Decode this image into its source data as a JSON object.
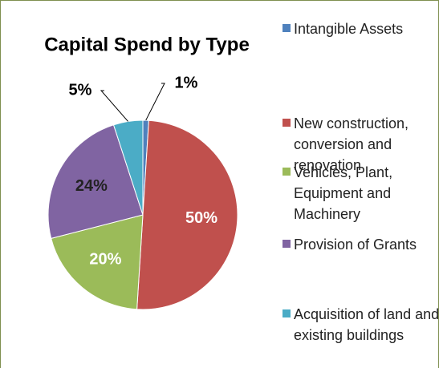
{
  "chart_data": {
    "type": "pie",
    "title": "Capital Spend by Type",
    "categories": [
      "Intangible Assets",
      "New construction, conversion and renovation",
      "Vehicles, Plant, Equipment and Machinery",
      "Provision of Grants",
      "Acquisition of land and existing buildings"
    ],
    "values": [
      1,
      50,
      20,
      24,
      5
    ],
    "value_labels": [
      "1%",
      "50%",
      "20%",
      "24%",
      "5%"
    ],
    "colors": [
      "#4f81bd",
      "#c0504d",
      "#9bbb59",
      "#8064a2",
      "#4bacc6"
    ],
    "legend": "right"
  }
}
